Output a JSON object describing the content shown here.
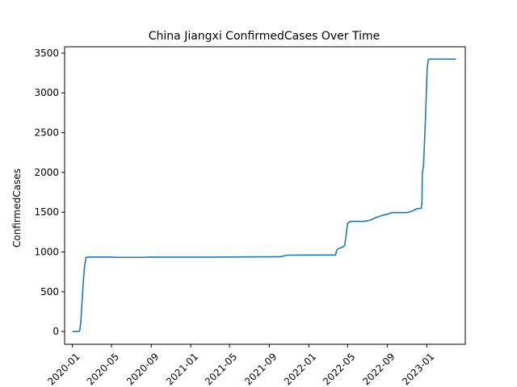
{
  "chart_data": {
    "type": "line",
    "title": "China Jiangxi ConfirmedCases Over Time",
    "xlabel": "",
    "ylabel": "ConfirmedCases",
    "ylim": [
      -160,
      3580
    ],
    "xlim": [
      "2019-12-08",
      "2023-04-30"
    ],
    "grid": false,
    "x_ticks": [
      "2020-01",
      "2020-05",
      "2020-09",
      "2021-01",
      "2021-05",
      "2021-09",
      "2022-01",
      "2022-05",
      "2022-09",
      "2023-01"
    ],
    "y_ticks": [
      0,
      500,
      1000,
      1500,
      2000,
      2500,
      3000,
      3500
    ],
    "series": [
      {
        "color": "#1f77b4",
        "x": [
          "2020-01-01",
          "2020-01-21",
          "2020-01-24",
          "2020-01-27",
          "2020-01-30",
          "2020-02-03",
          "2020-02-07",
          "2020-02-12",
          "2020-02-18",
          "2020-03-05",
          "2020-05-01",
          "2020-05-15",
          "2020-08-01",
          "2020-08-20",
          "2021-03-01",
          "2021-04-01",
          "2021-10-05",
          "2021-10-20",
          "2021-10-25",
          "2022-01-15",
          "2022-03-25",
          "2022-03-28",
          "2022-04-01",
          "2022-04-15",
          "2022-04-22",
          "2022-04-26",
          "2022-05-01",
          "2022-05-10",
          "2022-06-20",
          "2022-07-05",
          "2022-07-15",
          "2022-08-01",
          "2022-08-05",
          "2022-08-20",
          "2022-09-01",
          "2022-09-15",
          "2022-10-30",
          "2022-11-05",
          "2022-11-10",
          "2022-11-20",
          "2022-12-01",
          "2022-12-15",
          "2022-12-17",
          "2022-12-18",
          "2022-12-22",
          "2022-12-28",
          "2023-01-02",
          "2023-01-05",
          "2023-01-08",
          "2023-04-01"
        ],
        "values": [
          0,
          0,
          20,
          120,
          320,
          580,
          800,
          930,
          935,
          937,
          937,
          932,
          932,
          935,
          935,
          937,
          940,
          955,
          960,
          962,
          962,
          1020,
          1040,
          1060,
          1080,
          1200,
          1360,
          1385,
          1385,
          1395,
          1410,
          1440,
          1445,
          1465,
          1475,
          1495,
          1495,
          1500,
          1505,
          1520,
          1545,
          1550,
          1640,
          1980,
          2100,
          2700,
          3300,
          3410,
          3425,
          3425
        ]
      }
    ]
  }
}
